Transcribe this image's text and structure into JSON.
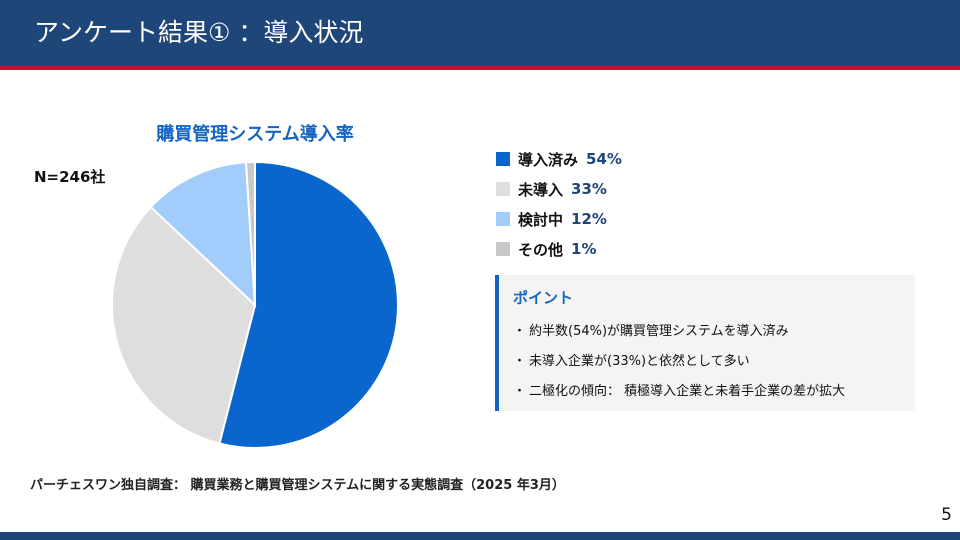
{
  "header": {
    "title": "アンケート結果① ：導入状況",
    "colors": {
      "background": "#1f4679",
      "stripe": "#c8102e"
    }
  },
  "chart_data": {
    "type": "pie",
    "title": "購買管理システム導入率",
    "sample_size": "N=246社",
    "categories": [
      "導入済み",
      "未導入",
      "検討中",
      "その他"
    ],
    "values": [
      54,
      33,
      12,
      1
    ],
    "value_labels": [
      "54%",
      "33%",
      "12%",
      "1%"
    ],
    "colors": [
      "#0a66cc",
      "#dedede",
      "#a2cdfb",
      "#c8c8c8"
    ],
    "legend_position": "right"
  },
  "points": {
    "title": "ポイント",
    "bullet": "・",
    "items": [
      "約半数(54%)が購買管理システムを導入済み",
      "未導入企業が(33%)と依然として多い",
      "二極化の傾向： 積極導入企業と未着手企業の差が拡大"
    ]
  },
  "footnote": "パーチェスワン独自調査： 購買業務と購買管理システムに関する実態調査（2025 年3月）",
  "page_number": "5"
}
